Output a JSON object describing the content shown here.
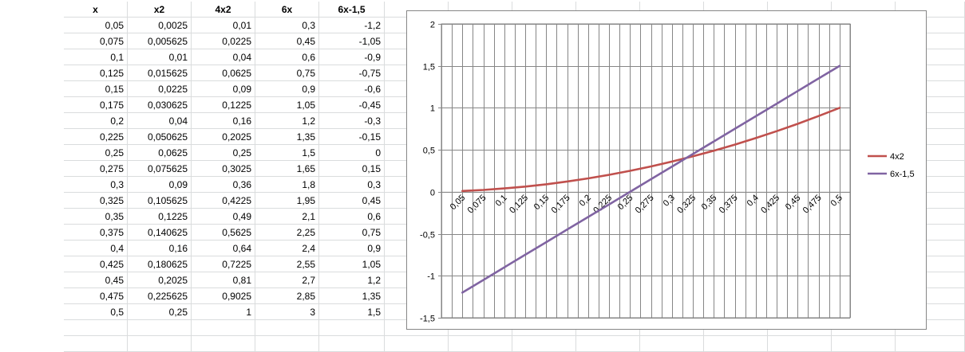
{
  "sheet": {
    "headers": [
      "x",
      "x2",
      "4x2",
      "6x",
      "6x-1,5"
    ],
    "rows": [
      [
        "0,05",
        "0,0025",
        "0,01",
        "0,3",
        "-1,2"
      ],
      [
        "0,075",
        "0,005625",
        "0,0225",
        "0,45",
        "-1,05"
      ],
      [
        "0,1",
        "0,01",
        "0,04",
        "0,6",
        "-0,9"
      ],
      [
        "0,125",
        "0,015625",
        "0,0625",
        "0,75",
        "-0,75"
      ],
      [
        "0,15",
        "0,0225",
        "0,09",
        "0,9",
        "-0,6"
      ],
      [
        "0,175",
        "0,030625",
        "0,1225",
        "1,05",
        "-0,45"
      ],
      [
        "0,2",
        "0,04",
        "0,16",
        "1,2",
        "-0,3"
      ],
      [
        "0,225",
        "0,050625",
        "0,2025",
        "1,35",
        "-0,15"
      ],
      [
        "0,25",
        "0,0625",
        "0,25",
        "1,5",
        "0"
      ],
      [
        "0,275",
        "0,075625",
        "0,3025",
        "1,65",
        "0,15"
      ],
      [
        "0,3",
        "0,09",
        "0,36",
        "1,8",
        "0,3"
      ],
      [
        "0,325",
        "0,105625",
        "0,4225",
        "1,95",
        "0,45"
      ],
      [
        "0,35",
        "0,1225",
        "0,49",
        "2,1",
        "0,6"
      ],
      [
        "0,375",
        "0,140625",
        "0,5625",
        "2,25",
        "0,75"
      ],
      [
        "0,4",
        "0,16",
        "0,64",
        "2,4",
        "0,9"
      ],
      [
        "0,425",
        "0,180625",
        "0,7225",
        "2,55",
        "1,05"
      ],
      [
        "0,45",
        "0,2025",
        "0,81",
        "2,7",
        "1,2"
      ],
      [
        "0,475",
        "0,225625",
        "0,9025",
        "2,85",
        "1,35"
      ],
      [
        "0,5",
        "0,25",
        "1",
        "3",
        "1,5"
      ]
    ]
  },
  "chart_data": {
    "type": "line",
    "categories": [
      "0,05",
      "0,075",
      "0,1",
      "0,125",
      "0,15",
      "0,175",
      "0,2",
      "0,225",
      "0,25",
      "0,275",
      "0,3",
      "0,325",
      "0,35",
      "0,375",
      "0,4",
      "0,425",
      "0,45",
      "0,475",
      "0,5"
    ],
    "series": [
      {
        "name": "4x2",
        "color": "#c0504d",
        "values": [
          0.01,
          0.0225,
          0.04,
          0.0625,
          0.09,
          0.1225,
          0.16,
          0.2025,
          0.25,
          0.3025,
          0.36,
          0.4225,
          0.49,
          0.5625,
          0.64,
          0.7225,
          0.81,
          0.9025,
          1
        ]
      },
      {
        "name": "6x-1,5",
        "color": "#8064a2",
        "values": [
          -1.2,
          -1.05,
          -0.9,
          -0.75,
          -0.6,
          -0.45,
          -0.3,
          -0.15,
          0,
          0.15,
          0.3,
          0.45,
          0.6,
          0.75,
          0.9,
          1.05,
          1.2,
          1.35,
          1.5
        ]
      }
    ],
    "yticks": [
      {
        "value": 2,
        "label": "2"
      },
      {
        "value": 1.5,
        "label": "1,5"
      },
      {
        "value": 1,
        "label": "1"
      },
      {
        "value": 0.5,
        "label": "0,5"
      },
      {
        "value": 0,
        "label": "0"
      },
      {
        "value": -0.5,
        "label": "-0,5"
      },
      {
        "value": -1,
        "label": "-1"
      },
      {
        "value": -1.5,
        "label": "-1,5"
      }
    ],
    "ylim": [
      -1.5,
      2
    ],
    "grid": true,
    "legend_position": "right",
    "colors": {
      "gridline": "#868686",
      "axis": "#868686"
    }
  }
}
